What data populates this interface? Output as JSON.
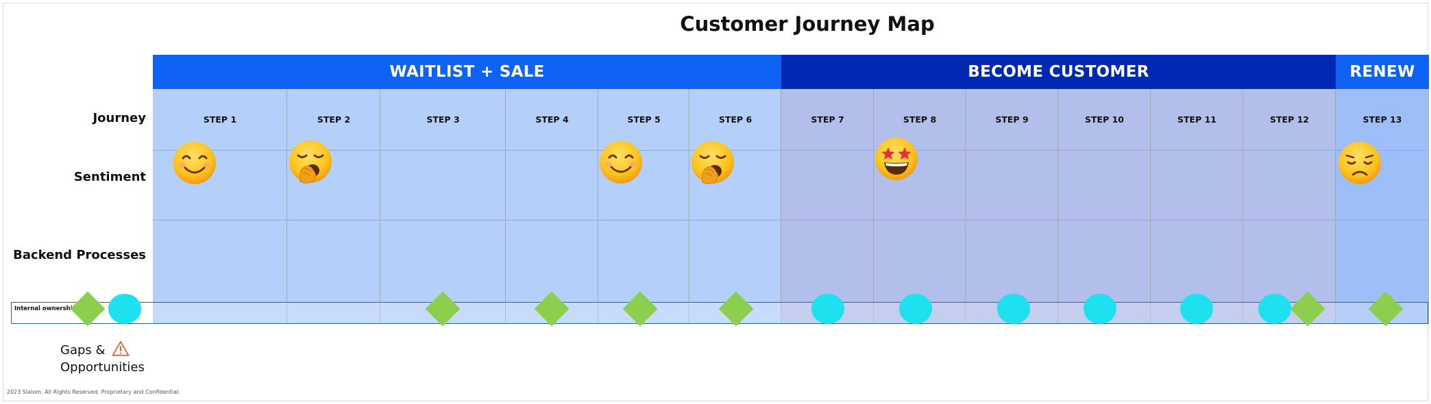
{
  "title": "Customer Journey Map",
  "phases": [
    {
      "label": "WAITLIST + SALE",
      "color": "#0e63f5",
      "bg": "#b5cffb"
    },
    {
      "label": "BECOME CUSTOMER",
      "color": "#0029b3",
      "bg": "#b1bfea"
    },
    {
      "label": "RENEW",
      "color": "#0e63f5",
      "bg": "#9ebef9"
    }
  ],
  "row_labels": {
    "journey": "Journey",
    "sentiment": "Sentiment",
    "backend": "Backend Processes",
    "internal": "Internal ownership"
  },
  "steps": [
    "STEP 1",
    "STEP 2",
    "STEP 3",
    "STEP 4",
    "STEP 5",
    "STEP 6",
    "STEP 7",
    "STEP 8",
    "STEP 9",
    "STEP 10",
    "STEP 11",
    "STEP 12",
    "STEP 13"
  ],
  "sentiments": [
    {
      "step": 1,
      "icon": "smiling-face-icon"
    },
    {
      "step": 2,
      "icon": "yawning-face-icon"
    },
    {
      "step": 5,
      "icon": "smiling-face-icon"
    },
    {
      "step": 6,
      "icon": "yawning-face-icon"
    },
    {
      "step": 8,
      "icon": "star-struck-face-icon"
    },
    {
      "step": 13,
      "icon": "disappointed-face-icon"
    }
  ],
  "markers": {
    "diamond_color": "#8ccf4e",
    "circle_color": "#1ee0ef"
  },
  "gaps": {
    "line1": "Gaps &",
    "line2": "Opportunities",
    "icon": "warning-icon"
  },
  "footer": "2023 Slalom. All Rights Reserved. Proprietary and Confidential."
}
